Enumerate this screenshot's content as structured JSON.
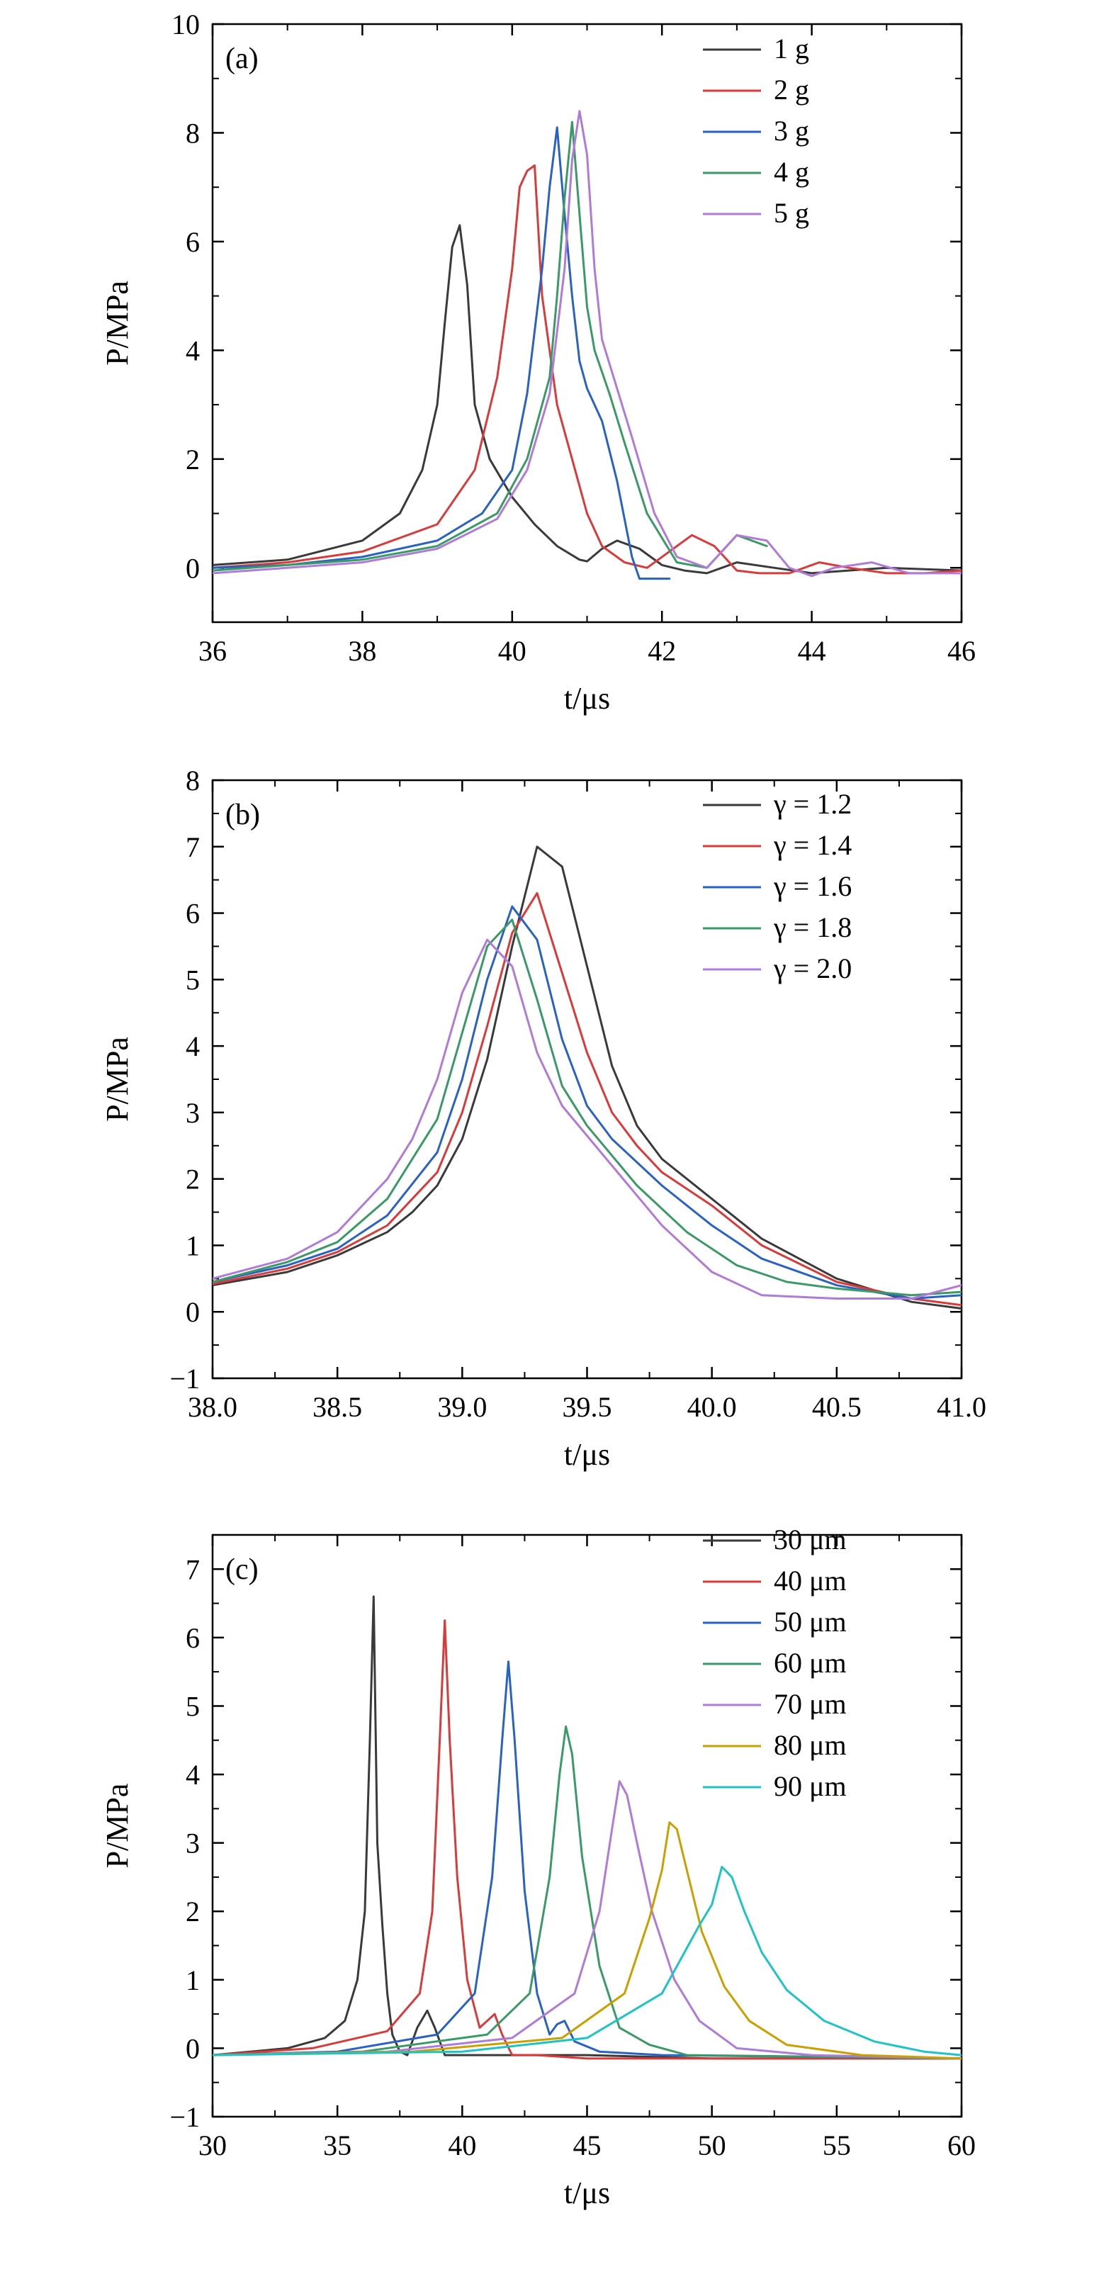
{
  "chart_data": [
    {
      "type": "line",
      "panel_label": "(a)",
      "xlabel": "t/μs",
      "ylabel": "P/MPa",
      "xlim": [
        36,
        46
      ],
      "ylim": [
        -1,
        10
      ],
      "xticks": [
        36,
        38,
        40,
        42,
        44,
        46
      ],
      "yticks": [
        0,
        2,
        4,
        6,
        8,
        10
      ],
      "legend_position": "top-right",
      "series": [
        {
          "name": "1 g",
          "color": "#3a3a3a",
          "x": [
            36.0,
            37.0,
            38.0,
            38.5,
            38.8,
            39.0,
            39.1,
            39.2,
            39.3,
            39.4,
            39.5,
            39.7,
            40.0,
            40.3,
            40.6,
            40.9,
            41.0,
            41.2,
            41.4,
            41.7,
            42.0,
            42.3,
            42.6,
            43.0,
            43.5,
            44.0,
            45.0,
            46.0
          ],
          "y": [
            0.05,
            0.15,
            0.5,
            1.0,
            1.8,
            3.0,
            4.5,
            5.9,
            6.3,
            5.2,
            3.0,
            2.0,
            1.3,
            0.8,
            0.4,
            0.15,
            0.12,
            0.35,
            0.5,
            0.35,
            0.05,
            -0.05,
            -0.1,
            0.1,
            0.0,
            -0.1,
            0.0,
            -0.05
          ]
        },
        {
          "name": "2 g",
          "color": "#d93a3a",
          "x": [
            36.0,
            37.0,
            38.0,
            39.0,
            39.5,
            39.8,
            40.0,
            40.1,
            40.2,
            40.3,
            40.4,
            40.6,
            40.8,
            41.0,
            41.2,
            41.5,
            41.8,
            42.1,
            42.4,
            42.7,
            43.0,
            43.3,
            43.7,
            44.1,
            44.5,
            45.0,
            45.5,
            46.0
          ],
          "y": [
            0.0,
            0.1,
            0.3,
            0.8,
            1.8,
            3.5,
            5.5,
            7.0,
            7.3,
            7.4,
            5.0,
            3.0,
            2.0,
            1.0,
            0.4,
            0.1,
            0.0,
            0.3,
            0.6,
            0.4,
            -0.05,
            -0.1,
            -0.1,
            0.1,
            0.0,
            -0.1,
            -0.1,
            -0.05
          ]
        },
        {
          "name": "3 g",
          "color": "#2a62c4",
          "x": [
            36.0,
            37.0,
            38.0,
            39.0,
            39.6,
            40.0,
            40.2,
            40.4,
            40.5,
            40.6,
            40.7,
            40.8,
            40.9,
            41.0,
            41.2,
            41.4,
            41.6,
            41.7,
            42.1
          ],
          "y": [
            0.0,
            0.05,
            0.2,
            0.5,
            1.0,
            1.8,
            3.2,
            5.5,
            7.0,
            8.1,
            6.5,
            5.0,
            3.8,
            3.3,
            2.7,
            1.6,
            0.2,
            -0.2,
            -0.2
          ]
        },
        {
          "name": "4 g",
          "color": "#3a9a65",
          "x": [
            36.0,
            37.0,
            38.0,
            39.0,
            39.8,
            40.2,
            40.5,
            40.6,
            40.7,
            40.8,
            40.9,
            41.0,
            41.1,
            41.3,
            41.5,
            41.8,
            42.2,
            42.6,
            43.0,
            43.4
          ],
          "y": [
            -0.05,
            0.05,
            0.15,
            0.4,
            1.0,
            2.0,
            3.5,
            5.0,
            6.8,
            8.2,
            6.5,
            4.8,
            4.0,
            3.2,
            2.3,
            1.0,
            0.1,
            0.0,
            0.6,
            0.4
          ]
        },
        {
          "name": "5 g",
          "color": "#b07ad8",
          "x": [
            36.0,
            37.0,
            38.0,
            39.0,
            39.8,
            40.2,
            40.5,
            40.7,
            40.8,
            40.9,
            41.0,
            41.1,
            41.2,
            41.4,
            41.6,
            41.9,
            42.2,
            42.6,
            43.0,
            43.4,
            43.7,
            44.0,
            44.3,
            44.8,
            45.3,
            46.0
          ],
          "y": [
            -0.1,
            0.0,
            0.1,
            0.35,
            0.9,
            1.8,
            3.2,
            5.5,
            7.5,
            8.4,
            7.6,
            5.5,
            4.2,
            3.3,
            2.4,
            1.0,
            0.2,
            0.0,
            0.6,
            0.5,
            0.0,
            -0.15,
            0.0,
            0.1,
            -0.1,
            -0.1
          ]
        }
      ]
    },
    {
      "type": "line",
      "panel_label": "(b)",
      "xlabel": "t/μs",
      "ylabel": "P/MPa",
      "xlim": [
        38.0,
        41.0
      ],
      "ylim": [
        -1,
        8
      ],
      "xticks": [
        38.0,
        38.5,
        39.0,
        39.5,
        40.0,
        40.5,
        41.0
      ],
      "xtick_labels": [
        "38.0",
        "38.5",
        "39.0",
        "39.5",
        "40.0",
        "40.5",
        "41.0"
      ],
      "yticks": [
        -1,
        0,
        1,
        2,
        3,
        4,
        5,
        6,
        7,
        8
      ],
      "ytick_labels": [
        "−1",
        "0",
        "1",
        "2",
        "3",
        "4",
        "5",
        "6",
        "7",
        "8"
      ],
      "legend_position": "top-right",
      "series": [
        {
          "name": "γ = 1.2",
          "color": "#3a3a3a",
          "x": [
            38.0,
            38.3,
            38.5,
            38.7,
            38.8,
            38.9,
            39.0,
            39.1,
            39.2,
            39.3,
            39.4,
            39.5,
            39.6,
            39.7,
            39.8,
            40.0,
            40.2,
            40.5,
            40.8,
            41.0
          ],
          "y": [
            0.4,
            0.6,
            0.85,
            1.2,
            1.5,
            1.9,
            2.6,
            3.8,
            5.5,
            7.0,
            6.7,
            5.2,
            3.7,
            2.8,
            2.3,
            1.7,
            1.1,
            0.5,
            0.15,
            0.05
          ]
        },
        {
          "name": "γ = 1.4",
          "color": "#d93a3a",
          "x": [
            38.0,
            38.3,
            38.5,
            38.7,
            38.9,
            39.0,
            39.1,
            39.2,
            39.3,
            39.4,
            39.5,
            39.6,
            39.7,
            39.8,
            40.0,
            40.2,
            40.5,
            40.8,
            41.0
          ],
          "y": [
            0.42,
            0.65,
            0.9,
            1.3,
            2.1,
            3.0,
            4.3,
            5.7,
            6.3,
            5.1,
            3.9,
            3.0,
            2.5,
            2.1,
            1.6,
            1.0,
            0.45,
            0.2,
            0.1
          ]
        },
        {
          "name": "γ = 1.6",
          "color": "#2a62c4",
          "x": [
            38.0,
            38.3,
            38.5,
            38.7,
            38.9,
            39.0,
            39.1,
            39.2,
            39.3,
            39.4,
            39.5,
            39.6,
            39.8,
            40.0,
            40.2,
            40.5,
            40.8,
            41.0
          ],
          "y": [
            0.45,
            0.7,
            0.95,
            1.45,
            2.4,
            3.5,
            5.0,
            6.1,
            5.6,
            4.1,
            3.1,
            2.6,
            1.9,
            1.3,
            0.8,
            0.4,
            0.2,
            0.25
          ]
        },
        {
          "name": "γ = 1.8",
          "color": "#3a9a65",
          "x": [
            38.0,
            38.3,
            38.5,
            38.7,
            38.9,
            39.0,
            39.1,
            39.2,
            39.3,
            39.4,
            39.5,
            39.7,
            39.9,
            40.1,
            40.3,
            40.5,
            40.8,
            41.0
          ],
          "y": [
            0.45,
            0.75,
            1.05,
            1.7,
            2.9,
            4.2,
            5.5,
            5.9,
            4.7,
            3.4,
            2.8,
            1.9,
            1.2,
            0.7,
            0.45,
            0.35,
            0.25,
            0.3
          ]
        },
        {
          "name": "γ = 2.0",
          "color": "#b07ad8",
          "x": [
            38.0,
            38.3,
            38.5,
            38.7,
            38.8,
            38.9,
            39.0,
            39.1,
            39.2,
            39.3,
            39.4,
            39.6,
            39.8,
            40.0,
            40.2,
            40.5,
            40.8,
            41.0
          ],
          "y": [
            0.5,
            0.8,
            1.2,
            2.0,
            2.6,
            3.5,
            4.8,
            5.6,
            5.2,
            3.9,
            3.1,
            2.2,
            1.3,
            0.6,
            0.25,
            0.2,
            0.2,
            0.4
          ]
        }
      ]
    },
    {
      "type": "line",
      "panel_label": "(c)",
      "xlabel": "t/μs",
      "ylabel": "P/MPa",
      "xlim": [
        30,
        60
      ],
      "ylim": [
        -1,
        7.5
      ],
      "xticks": [
        30,
        35,
        40,
        45,
        50,
        55,
        60
      ],
      "yticks": [
        -1,
        0,
        1,
        2,
        3,
        4,
        5,
        6,
        7
      ],
      "ytick_labels": [
        "−1",
        "0",
        "1",
        "2",
        "3",
        "4",
        "5",
        "6",
        "7"
      ],
      "legend_position": "top-right",
      "series": [
        {
          "name": "30 μm",
          "color": "#3a3a3a",
          "x": [
            30,
            33,
            34.5,
            35.3,
            35.8,
            36.1,
            36.3,
            36.45,
            36.6,
            36.8,
            37.0,
            37.2,
            37.5,
            37.8,
            38.2,
            38.6,
            38.9,
            39.3,
            39.8,
            41,
            45,
            50,
            60
          ],
          "y": [
            -0.1,
            0.0,
            0.15,
            0.4,
            1.0,
            2.0,
            4.5,
            6.6,
            3.0,
            1.8,
            0.8,
            0.2,
            -0.05,
            -0.1,
            0.3,
            0.55,
            0.3,
            -0.1,
            -0.1,
            -0.1,
            -0.1,
            -0.15,
            -0.15
          ]
        },
        {
          "name": "40 μm",
          "color": "#d93a3a",
          "x": [
            30,
            34,
            37,
            38.3,
            38.8,
            39.1,
            39.3,
            39.5,
            39.8,
            40.2,
            40.7,
            41.0,
            41.3,
            41.6,
            42.0,
            43,
            45,
            50,
            60
          ],
          "y": [
            -0.1,
            0.0,
            0.25,
            0.8,
            2.0,
            4.5,
            6.25,
            4.5,
            2.5,
            1.0,
            0.3,
            0.4,
            0.5,
            0.2,
            -0.1,
            -0.1,
            -0.15,
            -0.15,
            -0.15
          ]
        },
        {
          "name": "50 μm",
          "color": "#2a62c4",
          "x": [
            30,
            35,
            39,
            40.5,
            41.2,
            41.6,
            41.85,
            42.1,
            42.5,
            43.0,
            43.5,
            43.8,
            44.1,
            44.5,
            45.5,
            48,
            60
          ],
          "y": [
            -0.1,
            -0.05,
            0.2,
            0.8,
            2.5,
            4.5,
            5.65,
            4.5,
            2.3,
            0.8,
            0.2,
            0.35,
            0.4,
            0.1,
            -0.05,
            -0.1,
            -0.15
          ]
        },
        {
          "name": "60 μm",
          "color": "#3a9a65",
          "x": [
            30,
            36,
            41,
            42.7,
            43.5,
            43.9,
            44.15,
            44.4,
            44.8,
            45.5,
            46.3,
            47.5,
            49,
            60
          ],
          "y": [
            -0.1,
            -0.05,
            0.2,
            0.8,
            2.5,
            4.0,
            4.7,
            4.3,
            2.8,
            1.2,
            0.3,
            0.05,
            -0.1,
            -0.15
          ]
        },
        {
          "name": "70 μm",
          "color": "#b07ad8",
          "x": [
            30,
            37,
            42,
            44.5,
            45.5,
            46.0,
            46.3,
            46.6,
            47.0,
            47.6,
            48.5,
            49.5,
            51,
            54,
            60
          ],
          "y": [
            -0.1,
            -0.05,
            0.15,
            0.8,
            2.0,
            3.2,
            3.9,
            3.7,
            3.0,
            2.0,
            1.0,
            0.4,
            0.0,
            -0.1,
            -0.15
          ]
        },
        {
          "name": "80 μm",
          "color": "#c9a000",
          "x": [
            30,
            38,
            44,
            46.5,
            47.5,
            48.0,
            48.3,
            48.6,
            49.0,
            49.6,
            50.5,
            51.5,
            53,
            56,
            60
          ],
          "y": [
            -0.1,
            -0.05,
            0.15,
            0.8,
            1.9,
            2.6,
            3.3,
            3.2,
            2.6,
            1.7,
            0.9,
            0.4,
            0.05,
            -0.1,
            -0.15
          ]
        },
        {
          "name": "90 μm",
          "color": "#1ec4c4",
          "x": [
            30,
            40,
            45,
            48,
            49.5,
            50.0,
            50.4,
            50.8,
            51.3,
            52.0,
            53.0,
            54.5,
            56.5,
            58.5,
            60
          ],
          "y": [
            -0.1,
            -0.05,
            0.15,
            0.8,
            1.8,
            2.1,
            2.65,
            2.5,
            2.0,
            1.4,
            0.85,
            0.4,
            0.1,
            -0.05,
            -0.1
          ]
        }
      ]
    }
  ]
}
